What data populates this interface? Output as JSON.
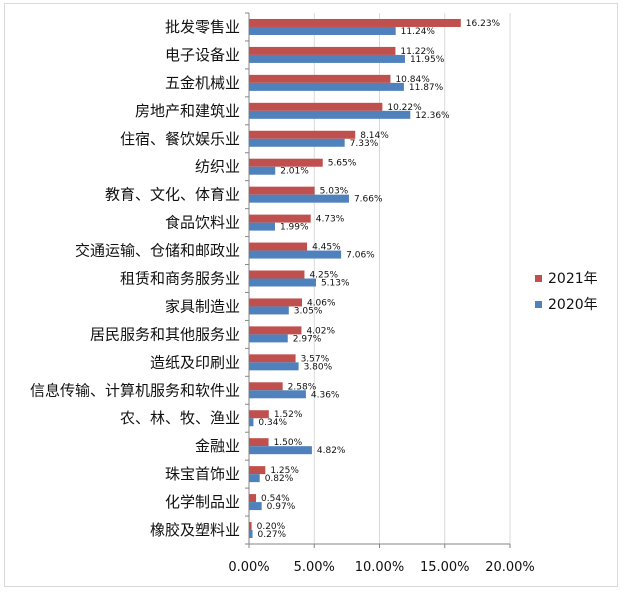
{
  "chart_data": {
    "type": "bar",
    "orientation": "horizontal",
    "categories": [
      "批发零售业",
      "电子设备业",
      "五金机械业",
      "房地产和建筑业",
      "住宿、餐饮娱乐业",
      "纺织业",
      "教育、文化、体育业",
      "食品饮料业",
      "交通运输、仓储和邮政业",
      "租赁和商务服务业",
      "家具制造业",
      "居民服务和其他服务业",
      "造纸及印刷业",
      "信息传输、计算机服务和软件业",
      "农、林、牧、渔业",
      "金融业",
      "珠宝首饰业",
      "化学制品业",
      "橡胶及塑料业"
    ],
    "series": [
      {
        "name": "2021年",
        "color": "#c0504d",
        "values": [
          16.23,
          11.22,
          10.84,
          10.22,
          8.14,
          5.65,
          5.03,
          4.73,
          4.45,
          4.25,
          4.06,
          4.02,
          3.57,
          2.58,
          1.52,
          1.5,
          1.25,
          0.54,
          0.2
        ],
        "labels": [
          "16.23%",
          "11.22%",
          "10.84%",
          "10.22%",
          "8.14%",
          "5.65%",
          "5.03%",
          "4.73%",
          "4.45%",
          "4.25%",
          "4.06%",
          "4.02%",
          "3.57%",
          "2.58%",
          "1.52%",
          "1.50%",
          "1.25%",
          "0.54%",
          "0.20%"
        ]
      },
      {
        "name": "2020年",
        "color": "#4f81bd",
        "values": [
          11.24,
          11.95,
          11.87,
          12.36,
          7.33,
          2.01,
          7.66,
          1.99,
          7.06,
          5.13,
          3.05,
          2.97,
          3.8,
          4.36,
          0.34,
          4.82,
          0.82,
          0.97,
          0.27
        ],
        "labels": [
          "11.24%",
          "11.95%",
          "11.87%",
          "12.36%",
          "7.33%",
          "2.01%",
          "7.66%",
          "1.99%",
          "7.06%",
          "5.13%",
          "3.05%",
          "2.97%",
          "3.80%",
          "4.36%",
          "0.34%",
          "4.82%",
          "0.82%",
          "0.97%",
          "0.27%"
        ]
      }
    ],
    "xlim": [
      0,
      20
    ],
    "xticks": [
      0,
      5,
      10,
      15,
      20
    ],
    "xtick_labels": [
      "0.00%",
      "5.00%",
      "10.00%",
      "15.00%",
      "20.00%"
    ],
    "grid": true,
    "legend": "right",
    "title": "",
    "xlabel": "",
    "ylabel": ""
  }
}
